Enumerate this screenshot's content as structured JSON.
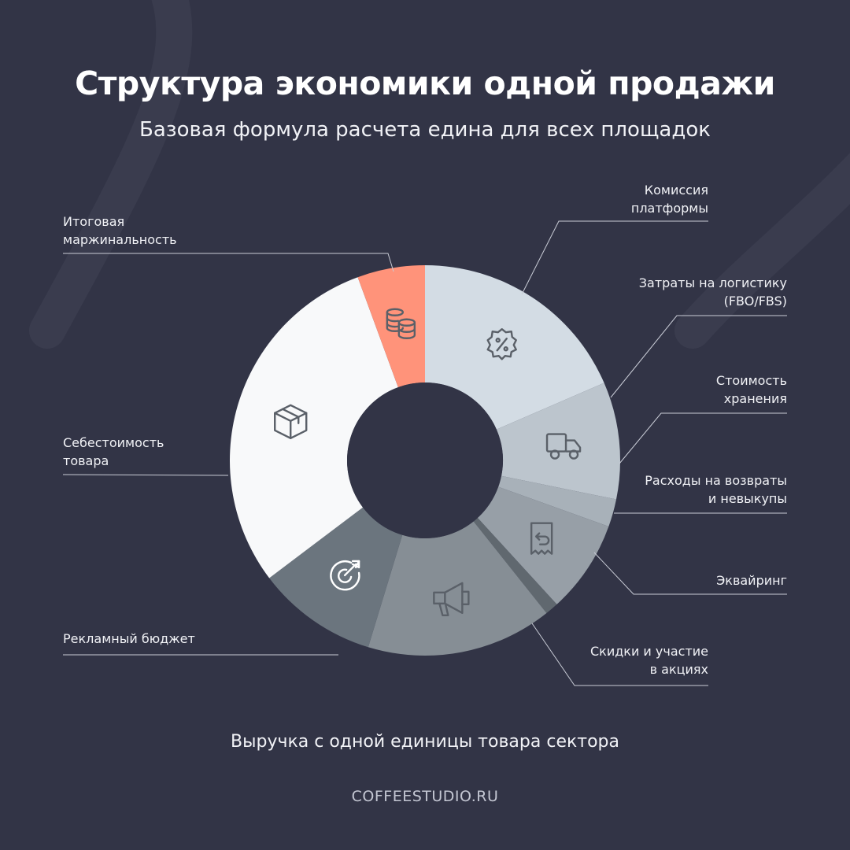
{
  "header": {
    "title": "Структура экономики одной продажи",
    "subtitle": "Базовая формула расчета едина для всех площадок"
  },
  "footer": {
    "caption": "Выручка с одной единицы товара сектора",
    "brand": "COFFEESTUDIO.RU"
  },
  "colors": {
    "background": "#323446",
    "hole": "#323446",
    "accent": "#ff937a"
  },
  "chart_data": {
    "type": "pie",
    "title": "Структура экономики одной продажи",
    "legend": "none",
    "slices": [
      {
        "label": "Комиссия\nплатформы",
        "value": 18.5,
        "color": "#d3dce4",
        "icon": "percent-badge-icon",
        "side": "right"
      },
      {
        "label": "Затраты на логистику\n(FBO/FBS)",
        "value": 9.7,
        "color": "#bcc5cd",
        "icon": "truck-icon",
        "side": "right"
      },
      {
        "label": "Стоимость\nхранения",
        "value": 2.3,
        "color": "#a8b1b9",
        "icon": "",
        "side": "right"
      },
      {
        "label": "Расходы на возвраты\nи невыкупы",
        "value": 7.7,
        "color": "#979fa7",
        "icon": "return-receipt-icon",
        "side": "right"
      },
      {
        "label": "Эквайринг",
        "value": 1.1,
        "color": "#60686f",
        "icon": "",
        "side": "right"
      },
      {
        "label": "Скидки и участие\nв акциях",
        "value": 15.4,
        "color": "#868e95",
        "icon": "megaphone-icon",
        "side": "right"
      },
      {
        "label": "Рекламный бюджет",
        "value": 10.0,
        "color": "#6b757e",
        "icon": "target-icon",
        "side": "left"
      },
      {
        "label": "Себестоимость\nтовара",
        "value": 29.7,
        "color": "#f8f9fa",
        "icon": "box-icon",
        "side": "left"
      },
      {
        "label": "Итоговая\nмаржинальность",
        "value": 5.6,
        "color": "#ff937a",
        "icon": "coins-icon",
        "side": "left"
      }
    ]
  }
}
